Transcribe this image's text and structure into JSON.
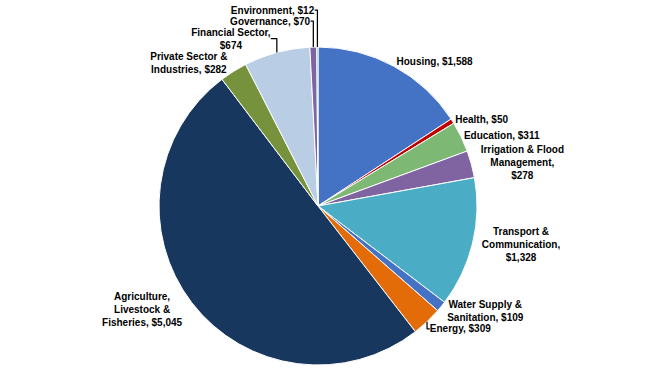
{
  "chart_data": {
    "type": "pie",
    "categories": [
      "Housing, $1,588",
      "Health, $50",
      "Education, $311",
      "Irrigation & Flood\nManagement,\n$278",
      "Transport &\nCommunication,\n$1,328",
      "Water Supply &\nSanitation, $109",
      "Energy, $309",
      "Agriculture,\nLivestock &\nFisheries, $5,045",
      "Private Sector &\nIndustries, $282",
      "Financial Sector,\n$674",
      "Governance, $70",
      "Environment, $12"
    ],
    "values": [
      1588,
      50,
      311,
      278,
      1328,
      109,
      309,
      5045,
      282,
      674,
      70,
      12
    ],
    "colors": [
      "#4472C4",
      "#C00000",
      "#7DB874",
      "#8064A2",
      "#4BACC6",
      "#4472C4",
      "#E36C09",
      "#17375E",
      "#76923C",
      "#B9CDE4",
      "#8064A2",
      "#00B0F0"
    ]
  }
}
